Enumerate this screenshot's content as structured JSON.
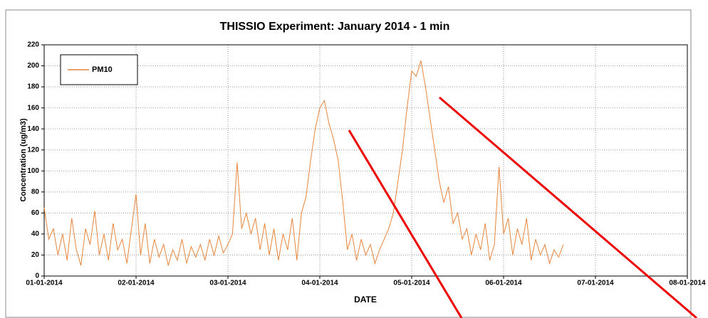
{
  "chart_data": {
    "type": "line",
    "title": "THISSIO Experiment: January 2014 - 1 min",
    "x_label": "DATE",
    "y_label": "Concentration (ug/m3)",
    "x": [
      0,
      0.05,
      0.1,
      0.15,
      0.2,
      0.25,
      0.3,
      0.35,
      0.4,
      0.45,
      0.5,
      0.55,
      0.6,
      0.65,
      0.7,
      0.75,
      0.8,
      0.85,
      0.9,
      0.95,
      1,
      1.05,
      1.1,
      1.15,
      1.2,
      1.25,
      1.3,
      1.35,
      1.4,
      1.45,
      1.5,
      1.55,
      1.6,
      1.65,
      1.7,
      1.75,
      1.8,
      1.85,
      1.9,
      1.95,
      2,
      2.05,
      2.1,
      2.15,
      2.2,
      2.25,
      2.3,
      2.35,
      2.4,
      2.45,
      2.5,
      2.55,
      2.6,
      2.65,
      2.7,
      2.75,
      2.8,
      2.85,
      2.9,
      2.95,
      3,
      3.05,
      3.1,
      3.15,
      3.2,
      3.25,
      3.3,
      3.35,
      3.4,
      3.45,
      3.5,
      3.55,
      3.6,
      3.65,
      3.7,
      3.75,
      3.8,
      3.85,
      3.9,
      3.95,
      4,
      4.05,
      4.1,
      4.15,
      4.2,
      4.25,
      4.3,
      4.35,
      4.4,
      4.45,
      4.5,
      4.55,
      4.6,
      4.65,
      4.7,
      4.75,
      4.8,
      4.85,
      4.9,
      4.95,
      5,
      5.05,
      5.1,
      5.15,
      5.2,
      5.25,
      5.3,
      5.35,
      5.4,
      5.45,
      5.5,
      5.55,
      5.6,
      5.65
    ],
    "series": [
      {
        "name": "PM10",
        "color": "#e8843a",
        "values": [
          65,
          35,
          45,
          20,
          40,
          15,
          55,
          25,
          10,
          45,
          30,
          62,
          20,
          40,
          15,
          50,
          25,
          35,
          12,
          45,
          78,
          20,
          50,
          12,
          35,
          18,
          30,
          10,
          25,
          15,
          35,
          12,
          28,
          18,
          30,
          15,
          35,
          20,
          38,
          22,
          30,
          40,
          108,
          45,
          60,
          40,
          55,
          25,
          50,
          20,
          45,
          15,
          40,
          25,
          55,
          15,
          60,
          75,
          110,
          140,
          160,
          167,
          145,
          130,
          110,
          70,
          25,
          40,
          15,
          35,
          20,
          30,
          12,
          25,
          35,
          45,
          60,
          90,
          120,
          160,
          195,
          190,
          205,
          180,
          150,
          120,
          90,
          70,
          85,
          50,
          60,
          35,
          45,
          20,
          40,
          25,
          50,
          15,
          30,
          104,
          40,
          55,
          20,
          45,
          30,
          55,
          15,
          35,
          20,
          30,
          12,
          25,
          18,
          30
        ]
      }
    ],
    "xlim": [
      0,
      7
    ],
    "xticks": [
      {
        "value": 0,
        "label": "01-01-2014"
      },
      {
        "value": 1,
        "label": "02-01-2014"
      },
      {
        "value": 2,
        "label": "03-01-2014"
      },
      {
        "value": 3,
        "label": "04-01-2014"
      },
      {
        "value": 4,
        "label": "05-01-2014"
      },
      {
        "value": 5,
        "label": "06-01-2014"
      },
      {
        "value": 6,
        "label": "07-01-2014"
      },
      {
        "value": 7,
        "label": "08-01-2014"
      }
    ],
    "ylim": [
      0,
      220
    ],
    "yticks": [
      0,
      20,
      40,
      60,
      80,
      100,
      120,
      140,
      160,
      180,
      200,
      220
    ],
    "grid": true,
    "legend": "upper left"
  }
}
